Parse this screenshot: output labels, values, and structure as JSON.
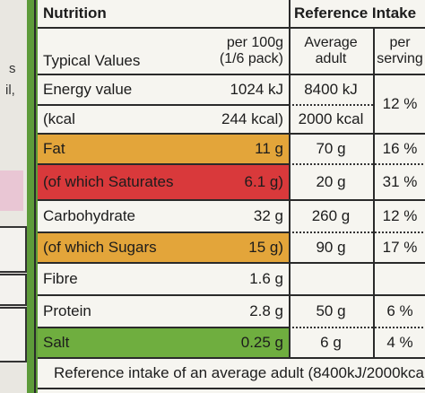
{
  "side_fragments": [
    "s",
    "il,"
  ],
  "header": {
    "title": "Nutrition",
    "reference_title": "Reference Intake",
    "col_typical": "Typical Values",
    "col_per100_line1": "per 100g",
    "col_per100_line2": "(1/6 pack)",
    "col_avg_line1": "Average",
    "col_avg_line2": "adult",
    "col_serving_line1": "per",
    "col_serving_line2": "serving"
  },
  "rows": [
    {
      "name": "Energy value",
      "per100": "1024 kJ",
      "adult": "8400 kJ",
      "serving": "12 %"
    },
    {
      "name": "(kcal",
      "per100": "244 kcal)",
      "adult": "2000 kcal",
      "serving": ""
    },
    {
      "name": "Fat",
      "per100": "11 g",
      "adult": "70 g",
      "serving": "16 %",
      "color": "amber"
    },
    {
      "name": "(of which Saturates",
      "per100": "6.1 g)",
      "adult": "20 g",
      "serving": "31 %",
      "color": "red"
    },
    {
      "name": "Carbohydrate",
      "per100": "32 g",
      "adult": "260 g",
      "serving": "12 %"
    },
    {
      "name": "(of which Sugars",
      "per100": "15 g)",
      "adult": "90 g",
      "serving": "17 %",
      "color": "amber"
    },
    {
      "name": "Fibre",
      "per100": "1.6 g",
      "adult": "",
      "serving": ""
    },
    {
      "name": "Protein",
      "per100": "2.8 g",
      "adult": "50 g",
      "serving": "6 %"
    },
    {
      "name": "Salt",
      "per100": "0.25 g",
      "adult": "6 g",
      "serving": "4 %",
      "color": "green"
    }
  ],
  "footer": "Reference intake of an average adult (8400kJ/2000kcal)",
  "colors": {
    "amber": "#e3a53a",
    "red": "#d9393b",
    "green": "#6fae3f",
    "border": "#2a2a2a"
  }
}
